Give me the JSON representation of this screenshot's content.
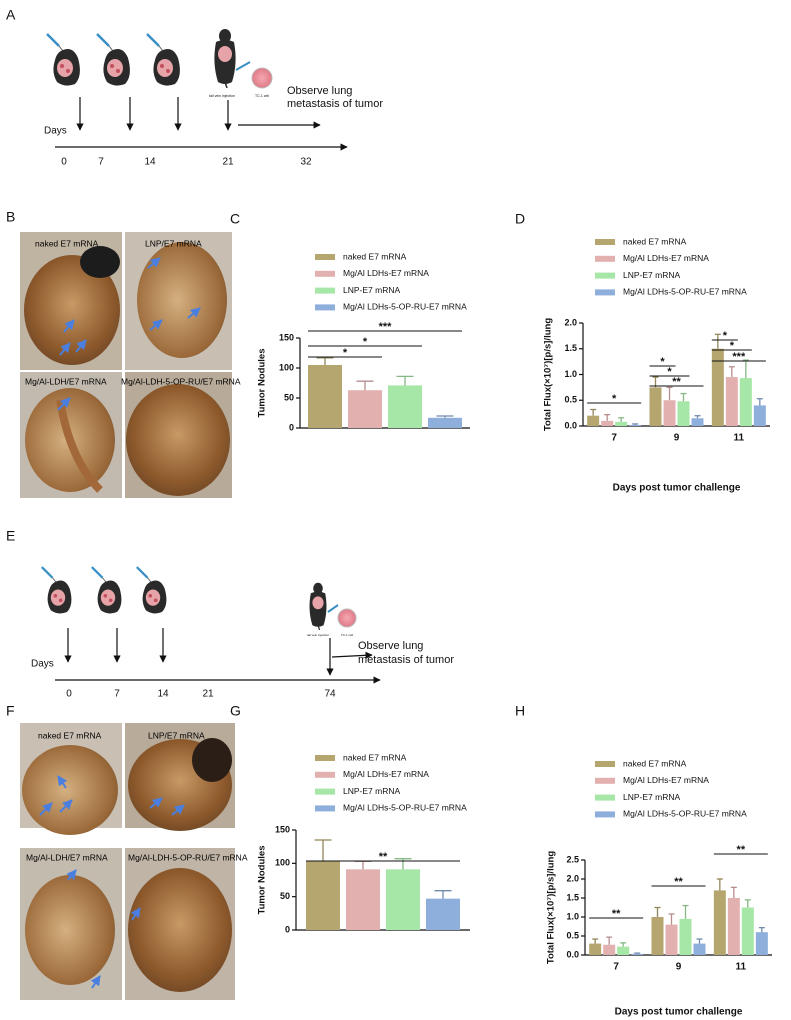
{
  "panel_labels": [
    "A",
    "B",
    "C",
    "D",
    "E",
    "F",
    "G",
    "H"
  ],
  "timeline_a": {
    "axis_label": "Days",
    "ticks": [
      "0",
      "7",
      "14",
      "21",
      "32"
    ],
    "note": [
      "Observe lung",
      "metastasis of tumor"
    ],
    "icon_labels": [
      "tail vein injection",
      "TC-1 cell"
    ]
  },
  "timeline_e": {
    "axis_label": "Days",
    "ticks": [
      "0",
      "7",
      "14",
      "21",
      "74"
    ],
    "note": [
      "Observe lung",
      "metastasis of tumor"
    ],
    "icon_labels": [
      "tail vein injection",
      "TC-1 cell"
    ]
  },
  "photos_b": {
    "labels": [
      "naked E7 mRNA",
      "LNP/E7 mRNA",
      "Mg/Al-LDH/E7 mRNA",
      "Mg/Al-LDH-5-OP-RU/E7 mRNA"
    ]
  },
  "photos_f": {
    "labels": [
      "naked E7 mRNA",
      "LNP/E7 mRNA",
      "Mg/Al-LDH/E7 mRNA",
      "Mg/Al-LDH-5-OP-RU/E7 mRNA"
    ]
  },
  "chart_data": [
    {
      "type": "bar",
      "categories": [
        null
      ],
      "y_label": "Tumor Nodules",
      "series": [
        {
          "name": "naked E7 mRNA",
          "color": "#b5a66f",
          "values": [
            105
          ],
          "errors": [
            12
          ]
        },
        {
          "name": "Mg/Al LDHs-E7 mRNA",
          "color": "#e3b0b0",
          "values": [
            63
          ],
          "errors": [
            15
          ]
        },
        {
          "name": "LNP-E7 mRNA",
          "color": "#a6e6a6",
          "values": [
            71
          ],
          "errors": [
            15
          ]
        },
        {
          "name": "Mg/Al LDHs-5-OP-RU-E7 mRNA",
          "color": "#8eaedb",
          "values": [
            17
          ],
          "errors": [
            3
          ]
        }
      ],
      "ylim": [
        0,
        150
      ],
      "yticks": [
        0,
        50,
        100,
        150
      ],
      "significance": [
        "*",
        "*",
        "***"
      ]
    },
    {
      "type": "bar",
      "categories": [
        "7",
        "9",
        "11"
      ],
      "y_label": "Total Flux(×10⁷)[p/s]/lung",
      "x_label": "Days post tumor challenge",
      "series": [
        {
          "name": "naked E7 mRNA",
          "color": "#b5a66f",
          "values": [
            0.2,
            0.75,
            1.5
          ],
          "errors": [
            0.12,
            0.2,
            0.28
          ]
        },
        {
          "name": "Mg/Al LDHs-E7 mRNA",
          "color": "#e3b0b0",
          "values": [
            0.1,
            0.5,
            0.95
          ],
          "errors": [
            0.12,
            0.25,
            0.2
          ]
        },
        {
          "name": "LNP-E7 mRNA",
          "color": "#a6e6a6",
          "values": [
            0.08,
            0.48,
            0.93
          ],
          "errors": [
            0.08,
            0.15,
            0.35
          ]
        },
        {
          "name": "Mg/Al LDHs-5-OP-RU-E7 mRNA",
          "color": "#8eaedb",
          "values": [
            0.02,
            0.15,
            0.4
          ],
          "errors": [
            0.02,
            0.05,
            0.13
          ]
        }
      ],
      "ylim": [
        0,
        2
      ],
      "yticks": [
        {
          "value": 0,
          "label": "0.0"
        },
        0.5,
        {
          "value": 1,
          "label": "1.0"
        },
        1.5,
        {
          "value": 2,
          "label": "2.0"
        }
      ],
      "significance": [
        "*",
        "*",
        "*",
        "**",
        "*",
        "*",
        "***"
      ]
    },
    {
      "type": "bar",
      "categories": [
        null
      ],
      "y_label": "Tumor Nodules",
      "series": [
        {
          "name": "naked E7 mRNA",
          "color": "#b5a66f",
          "values": [
            103
          ],
          "errors": [
            32
          ]
        },
        {
          "name": "Mg/Al LDHs-E7 mRNA",
          "color": "#e3b0b0",
          "values": [
            91
          ],
          "errors": [
            12
          ]
        },
        {
          "name": "LNP-E7 mRNA",
          "color": "#a6e6a6",
          "values": [
            91
          ],
          "errors": [
            16
          ]
        },
        {
          "name": "Mg/Al LDHs-5-OP-RU-E7 mRNA",
          "color": "#8eaedb",
          "values": [
            47
          ],
          "errors": [
            12
          ]
        }
      ],
      "ylim": [
        0,
        150
      ],
      "yticks": [
        0,
        50,
        100,
        150
      ],
      "significance": [
        "**"
      ]
    },
    {
      "type": "bar",
      "categories": [
        "7",
        "9",
        "11"
      ],
      "y_label": "Total Flux(×10⁷)[p/s]/lung",
      "x_label": "Days post tumor challenge",
      "series": [
        {
          "name": "naked E7 mRNA",
          "color": "#b5a66f",
          "values": [
            0.3,
            1.0,
            1.7
          ],
          "errors": [
            0.12,
            0.25,
            0.3
          ]
        },
        {
          "name": "Mg/Al LDHs-E7 mRNA",
          "color": "#e3b0b0",
          "values": [
            0.27,
            0.8,
            1.5
          ],
          "errors": [
            0.2,
            0.28,
            0.28
          ]
        },
        {
          "name": "LNP-E7 mRNA",
          "color": "#a6e6a6",
          "values": [
            0.22,
            0.95,
            1.25
          ],
          "errors": [
            0.1,
            0.35,
            0.2
          ]
        },
        {
          "name": "Mg/Al LDHs-5-OP-RU-E7 mRNA",
          "color": "#8eaedb",
          "values": [
            0.03,
            0.3,
            0.6
          ],
          "errors": [
            0.02,
            0.12,
            0.12
          ]
        }
      ],
      "ylim": [
        0,
        2.5
      ],
      "yticks": [
        {
          "value": 0,
          "label": "0.0"
        },
        0.5,
        {
          "value": 1,
          "label": "1.0"
        },
        1.5,
        {
          "value": 2,
          "label": "2.0"
        },
        2.5
      ],
      "significance": [
        "**",
        "**",
        "**"
      ]
    }
  ]
}
